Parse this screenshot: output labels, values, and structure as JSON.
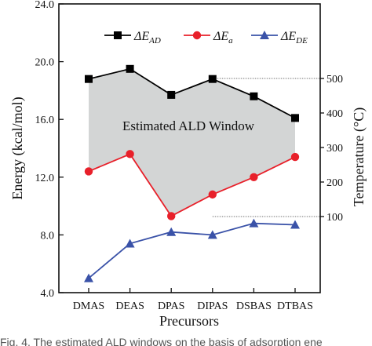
{
  "chart_data": {
    "type": "line",
    "categories": [
      "DMAS",
      "DEAS",
      "DPAS",
      "DIPAS",
      "DSBAS",
      "DTBAS"
    ],
    "xlabel": "Precursors",
    "ylabel": "Energy (kcal/mol)",
    "ylim": [
      4.0,
      24.0
    ],
    "yticks": [
      "4.0",
      "8.0",
      "12.0",
      "16.0",
      "20.0",
      "24.0"
    ],
    "y2label": "Temperature (°C)",
    "y2ticks": [
      "100",
      "200",
      "300",
      "400",
      "500"
    ],
    "series": [
      {
        "name": "ΔE",
        "subscript": "AD",
        "color": "#000000",
        "marker": "square",
        "values": [
          18.8,
          19.5,
          17.7,
          18.8,
          17.6,
          16.1
        ]
      },
      {
        "name": "ΔE",
        "subscript": "a",
        "color": "#e8202a",
        "marker": "circle",
        "values": [
          12.4,
          13.6,
          9.3,
          10.8,
          12.0,
          13.4
        ]
      },
      {
        "name": "ΔE",
        "subscript": "DE",
        "color": "#3a52a8",
        "marker": "triangle",
        "values": [
          5.0,
          7.4,
          8.2,
          8.0,
          8.8,
          8.7
        ]
      }
    ],
    "shaded_region": {
      "label": "Estimated ALD Window",
      "color": "#d3d5d5",
      "between": [
        "ΔE_AD",
        "ΔE_a"
      ]
    },
    "legend_position": "top",
    "grid": false
  },
  "caption": "Fig. 4.  The estimated ALD windows on the basis of adsorption ene"
}
